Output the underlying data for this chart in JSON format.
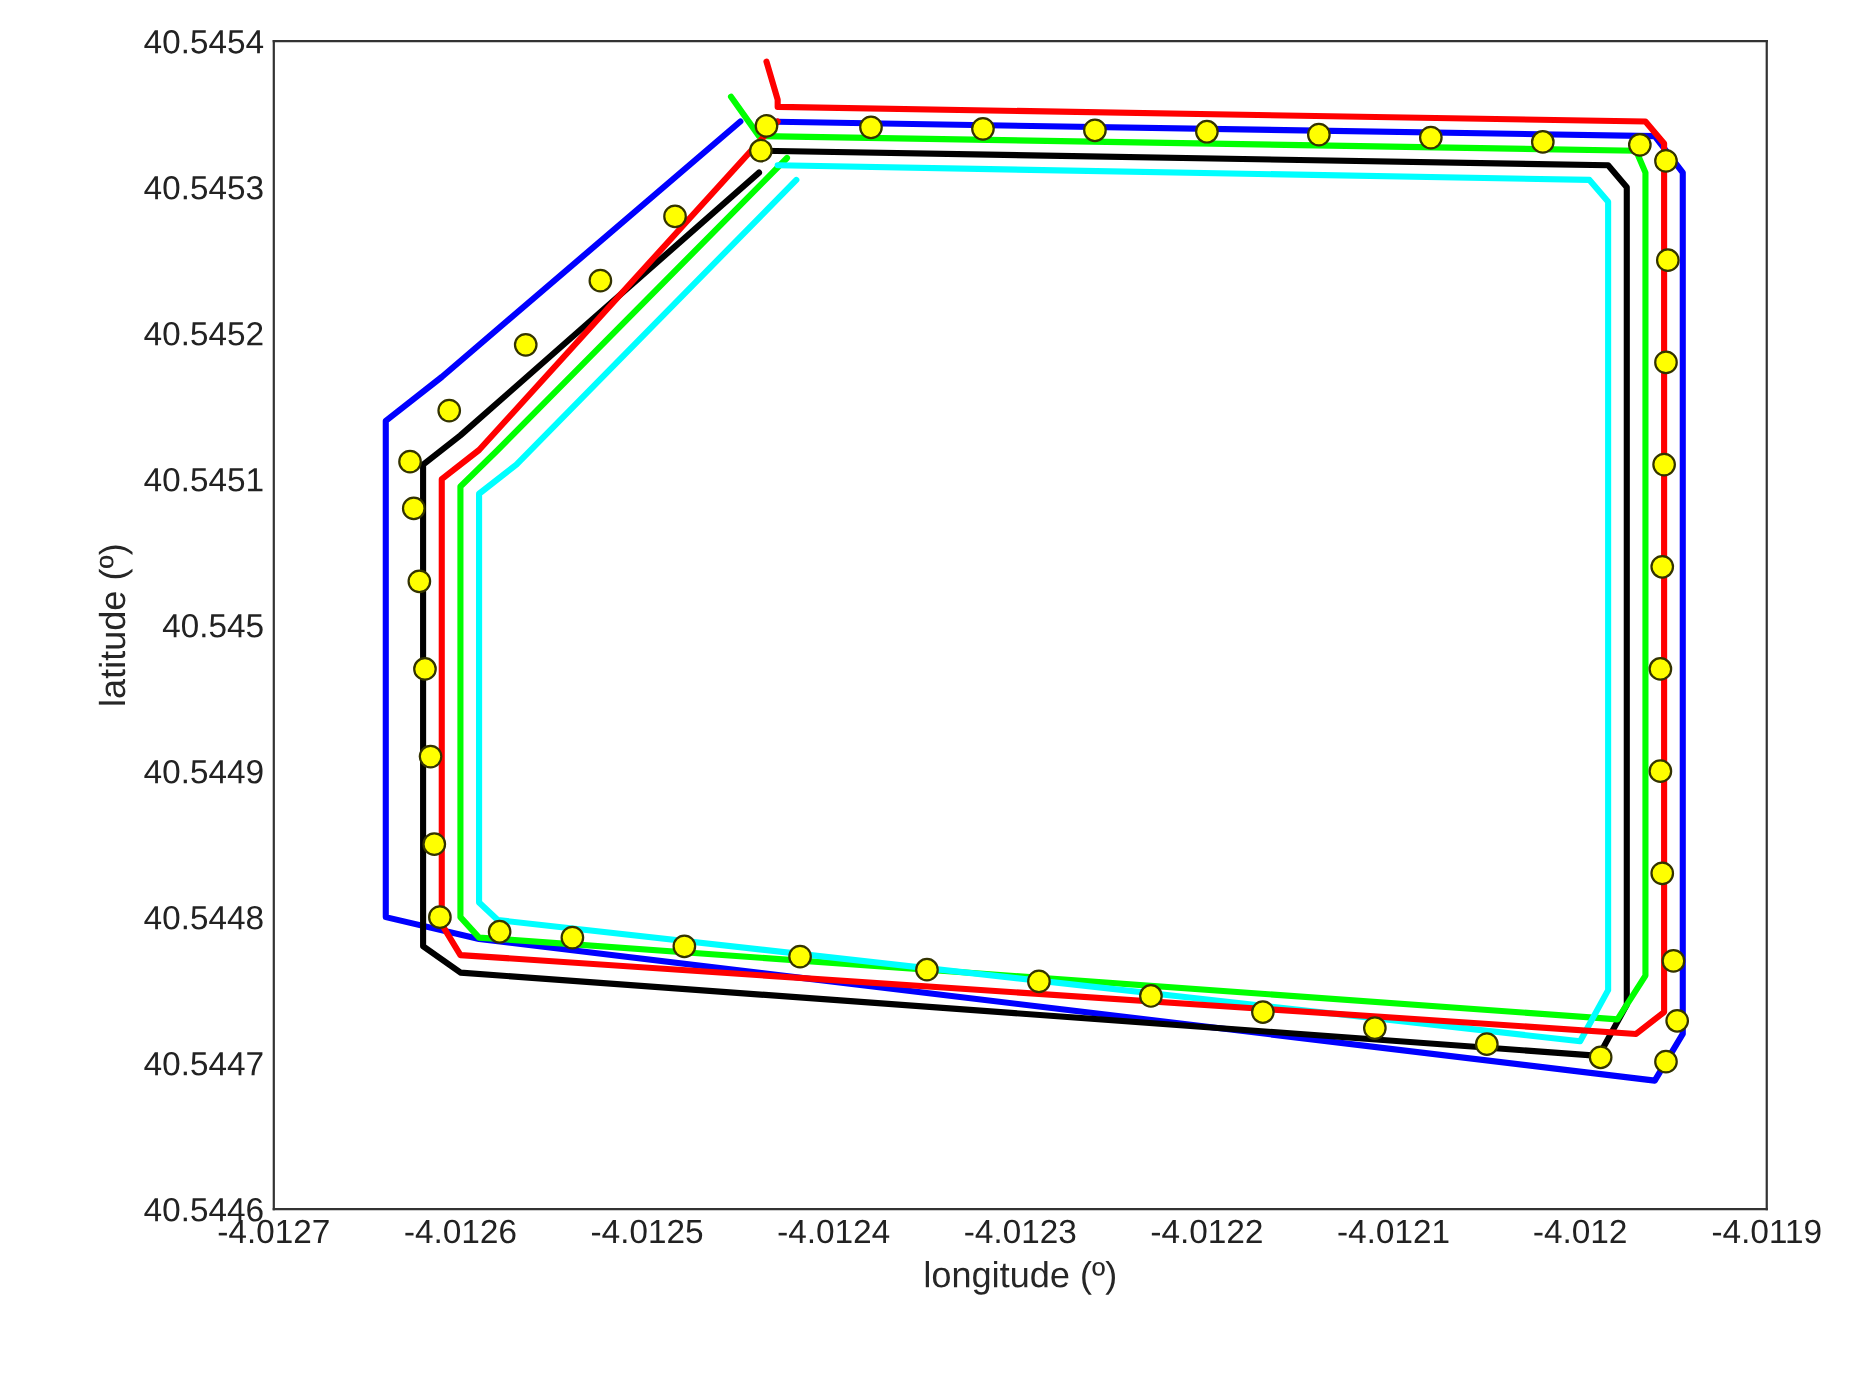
{
  "chart_data": {
    "type": "line",
    "xlabel": "longitude (º)",
    "ylabel": "latitude (º)",
    "xlim": [
      -4.0127,
      -4.0119
    ],
    "xticks": [
      -4.0127,
      -4.0126,
      -4.0125,
      -4.0124,
      -4.0123,
      -4.0122,
      -4.0121,
      -4.012,
      -4.0119
    ],
    "ylim": [
      40.5446,
      40.5454
    ],
    "yticks": [
      40.5446,
      40.5447,
      40.5448,
      40.5449,
      40.545,
      40.5451,
      40.5452,
      40.5453,
      40.5454
    ],
    "grid": false,
    "series": [
      {
        "type": "line",
        "color": "#0000ff",
        "x": [
          -4.01244,
          -4.01196,
          -4.011945,
          -4.011945,
          -4.01196,
          -4.01259,
          -4.01264,
          -4.01264,
          -4.01261,
          -4.01245
        ],
        "values": [
          40.545345,
          40.545335,
          40.54531,
          40.54472,
          40.544688,
          40.544785,
          40.5448,
          40.54514,
          40.54517,
          40.545345
        ]
      },
      {
        "type": "line",
        "color": "#000000",
        "x": [
          -4.01244,
          -4.011985,
          -4.011975,
          -4.011975,
          -4.01199,
          -4.0126,
          -4.01262,
          -4.01262,
          -4.0126,
          -4.01244
        ],
        "values": [
          40.545325,
          40.545315,
          40.5453,
          40.54474,
          40.544705,
          40.544762,
          40.54478,
          40.54511,
          40.54513,
          40.54531
        ]
      },
      {
        "type": "line",
        "color": "#00ff00",
        "x": [
          -4.012455,
          -4.01244,
          -4.01197,
          -4.011965,
          -4.011965,
          -4.01198,
          -4.01259,
          -4.0126,
          -4.0126,
          -4.01258,
          -4.012425
        ],
        "values": [
          40.545362,
          40.545335,
          40.545325,
          40.54531,
          40.54476,
          40.54473,
          40.544786,
          40.5448,
          40.545095,
          40.54512,
          40.54532
        ]
      },
      {
        "type": "line",
        "color": "#00ffff",
        "x": [
          -4.01243,
          -4.011995,
          -4.011985,
          -4.011985,
          -4.012,
          -4.01258,
          -4.01259,
          -4.01259,
          -4.01257,
          -4.01242
        ],
        "values": [
          40.545315,
          40.545305,
          40.54529,
          40.54475,
          40.544715,
          40.544798,
          40.54481,
          40.54509,
          40.54511,
          40.545305
        ]
      },
      {
        "type": "line",
        "color": "#ff0000",
        "x": [
          -4.012436,
          -4.01243,
          -4.01243,
          -4.011965,
          -4.011955,
          -4.011955,
          -4.01197,
          -4.0126,
          -4.01261,
          -4.01261,
          -4.01259,
          -4.01243
        ],
        "values": [
          40.545386,
          40.54536,
          40.545355,
          40.545345,
          40.54533,
          40.544735,
          40.54472,
          40.544774,
          40.544795,
          40.5451,
          40.54512,
          40.545345
        ]
      },
      {
        "type": "scatter",
        "color": "#ffff00",
        "marker": "circle",
        "x": [
          -4.012436,
          -4.01238,
          -4.01232,
          -4.01226,
          -4.0122,
          -4.01214,
          -4.01208,
          -4.01202,
          -4.011968,
          -4.011954,
          -4.011953,
          -4.011954,
          -4.011955,
          -4.011956,
          -4.011957,
          -4.011957,
          -4.011956,
          -4.01195,
          -4.011948,
          -4.011954,
          -4.011989,
          -4.01205,
          -4.01211,
          -4.01217,
          -4.01223,
          -4.01229,
          -4.01235,
          -4.012418,
          -4.01248,
          -4.01254,
          -4.012579,
          -4.012611,
          -4.012614,
          -4.012616,
          -4.012619,
          -4.012622,
          -4.012625,
          -4.012627,
          -4.012606,
          -4.012565,
          -4.012525,
          -4.012485,
          -4.012439
        ],
        "values": [
          40.545342,
          40.545341,
          40.54534,
          40.545339,
          40.545338,
          40.545336,
          40.545334,
          40.545331,
          40.545329,
          40.545318,
          40.54525,
          40.54518,
          40.54511,
          40.54504,
          40.54497,
          40.5449,
          40.54483,
          40.54477,
          40.544729,
          40.544701,
          40.544704,
          40.544713,
          40.544724,
          40.544735,
          40.544746,
          40.544756,
          40.544764,
          40.544773,
          40.54478,
          40.544786,
          40.54479,
          40.5448,
          40.54485,
          40.54491,
          40.54497,
          40.54503,
          40.54508,
          40.545112,
          40.545147,
          40.545192,
          40.545236,
          40.54528,
          40.545325
        ]
      }
    ]
  }
}
